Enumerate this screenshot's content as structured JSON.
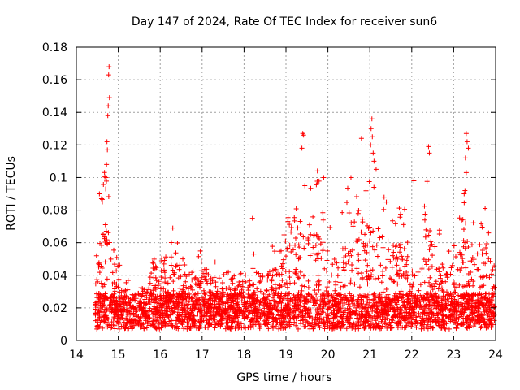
{
  "chart_data": {
    "type": "scatter",
    "title": "Day 147 of 2024, Rate Of TEC Index for receiver sun6",
    "xlabel": "GPS time / hours",
    "ylabel": "ROTI / TECUs",
    "xlim": [
      14,
      24
    ],
    "ylim": [
      0,
      0.18
    ],
    "xticks": [
      "14",
      "15",
      "16",
      "17",
      "18",
      "19",
      "20",
      "21",
      "22",
      "23",
      "24"
    ],
    "yticks": [
      "0",
      "0.02",
      "0.04",
      "0.06",
      "0.08",
      "0.1",
      "0.12",
      "0.14",
      "0.16",
      "0.18"
    ],
    "grid": true,
    "marker": "+",
    "series_color": "#ff0000",
    "envelope": [
      [
        14.45,
        0.045
      ],
      [
        14.6,
        0.088
      ],
      [
        14.75,
        0.12
      ],
      [
        14.85,
        0.07
      ],
      [
        15.0,
        0.05
      ],
      [
        15.2,
        0.04
      ],
      [
        15.4,
        0.03
      ],
      [
        15.6,
        0.035
      ],
      [
        15.9,
        0.062
      ],
      [
        16.2,
        0.05
      ],
      [
        16.3,
        0.068
      ],
      [
        16.6,
        0.05
      ],
      [
        16.9,
        0.058
      ],
      [
        17.2,
        0.05
      ],
      [
        17.5,
        0.045
      ],
      [
        17.8,
        0.04
      ],
      [
        18.0,
        0.045
      ],
      [
        18.2,
        0.06
      ],
      [
        18.5,
        0.055
      ],
      [
        18.8,
        0.06
      ],
      [
        19.0,
        0.075
      ],
      [
        19.3,
        0.09
      ],
      [
        19.5,
        0.095
      ],
      [
        19.8,
        0.1
      ],
      [
        20.0,
        0.085
      ],
      [
        20.3,
        0.075
      ],
      [
        20.5,
        0.1
      ],
      [
        20.7,
        0.09
      ],
      [
        21.0,
        0.1
      ],
      [
        21.3,
        0.09
      ],
      [
        21.6,
        0.085
      ],
      [
        21.9,
        0.085
      ],
      [
        22.0,
        0.05
      ],
      [
        22.2,
        0.06
      ],
      [
        22.35,
        0.1
      ],
      [
        22.6,
        0.075
      ],
      [
        22.8,
        0.055
      ],
      [
        23.0,
        0.07
      ],
      [
        23.3,
        0.09
      ],
      [
        23.6,
        0.07
      ],
      [
        23.8,
        0.085
      ],
      [
        24.0,
        0.04
      ]
    ],
    "spikes": [
      [
        14.78,
        0.168
      ],
      [
        14.77,
        0.163
      ],
      [
        14.79,
        0.149
      ],
      [
        14.76,
        0.144
      ],
      [
        14.75,
        0.138
      ],
      [
        14.73,
        0.122
      ],
      [
        14.74,
        0.117
      ],
      [
        14.72,
        0.108
      ],
      [
        14.71,
        0.1
      ],
      [
        14.7,
        0.093
      ],
      [
        14.55,
        0.09
      ],
      [
        14.6,
        0.087
      ],
      [
        14.62,
        0.085
      ],
      [
        19.4,
        0.127
      ],
      [
        19.42,
        0.126
      ],
      [
        19.38,
        0.118
      ],
      [
        19.45,
        0.095
      ],
      [
        20.8,
        0.124
      ],
      [
        20.55,
        0.1
      ],
      [
        21.05,
        0.136
      ],
      [
        21.03,
        0.13
      ],
      [
        21.06,
        0.125
      ],
      [
        21.02,
        0.12
      ],
      [
        21.08,
        0.115
      ],
      [
        21.1,
        0.11
      ],
      [
        21.15,
        0.105
      ],
      [
        22.4,
        0.119
      ],
      [
        22.42,
        0.115
      ],
      [
        22.05,
        0.098
      ],
      [
        23.3,
        0.127
      ],
      [
        23.32,
        0.122
      ],
      [
        23.35,
        0.118
      ],
      [
        23.28,
        0.112
      ],
      [
        23.3,
        0.103
      ],
      [
        23.27,
        0.092
      ],
      [
        23.25,
        0.09
      ],
      [
        18.2,
        0.075
      ],
      [
        16.3,
        0.069
      ],
      [
        19.75,
        0.104
      ],
      [
        19.9,
        0.1
      ]
    ]
  }
}
